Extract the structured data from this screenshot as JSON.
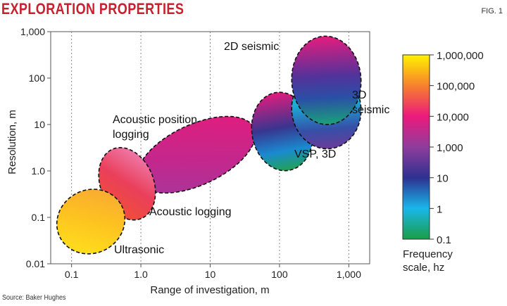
{
  "header": {
    "title": "EXPLORATION PROPERTIES",
    "fig_label": "FIG. 1"
  },
  "source": "Source: Baker Hughes",
  "chart_data": {
    "type": "scatter",
    "xlabel": "Range of investigation, m",
    "ylabel": "Resolution, m",
    "x_scale": "log",
    "y_scale": "log",
    "xlim": [
      0.05,
      2000
    ],
    "ylim": [
      0.01,
      1000
    ],
    "x_ticks": [
      {
        "value": 0.1,
        "label": "0.1"
      },
      {
        "value": 1,
        "label": "1.0"
      },
      {
        "value": 10,
        "label": "10"
      },
      {
        "value": 100,
        "label": "100"
      },
      {
        "value": 1000,
        "label": "1,000"
      }
    ],
    "y_ticks": [
      {
        "value": 0.01,
        "label": "0.01"
      },
      {
        "value": 0.1,
        "label": "0.1"
      },
      {
        "value": 1,
        "label": "1.0"
      },
      {
        "value": 10,
        "label": "10"
      },
      {
        "value": 100,
        "label": "100"
      },
      {
        "value": 1000,
        "label": "1,000"
      }
    ],
    "grid": "vertical dotted",
    "regions": [
      {
        "label": "Ultrasonic",
        "x_range": [
          0.06,
          0.6
        ],
        "y_range": [
          0.012,
          0.55
        ],
        "frequency_hz": 1000000
      },
      {
        "label": "Acoustic logging",
        "x_range": [
          0.25,
          1.6
        ],
        "y_range": [
          0.07,
          4
        ],
        "frequency_hz": 50000
      },
      {
        "label": "Acoustic position logging",
        "x_range": [
          0.8,
          50
        ],
        "y_range": [
          0.2,
          25
        ],
        "frequency_hz": 10000
      },
      {
        "label": "VSP, 3D",
        "x_range": [
          40,
          300
        ],
        "y_range": [
          1,
          50
        ],
        "frequency_hz": 10
      },
      {
        "label": "3D seismic",
        "x_range": [
          150,
          1500
        ],
        "y_range": [
          3,
          150
        ],
        "frequency_hz": 1
      },
      {
        "label": "2D seismic",
        "x_range": [
          150,
          1500
        ],
        "y_range": [
          10,
          800
        ],
        "frequency_hz": 10
      }
    ],
    "colorbar": {
      "title_line1": "Frequency",
      "title_line2": "scale, hz",
      "tick_labels": [
        "1,000,000",
        "100,000",
        "10,000",
        "1,000",
        "10",
        "1",
        "0.1"
      ],
      "colors": [
        "#fff200",
        "#f6812c",
        "#ec1a7c",
        "#8e3d9c",
        "#2e3191",
        "#19b7ea",
        "#1b9d46"
      ]
    }
  }
}
